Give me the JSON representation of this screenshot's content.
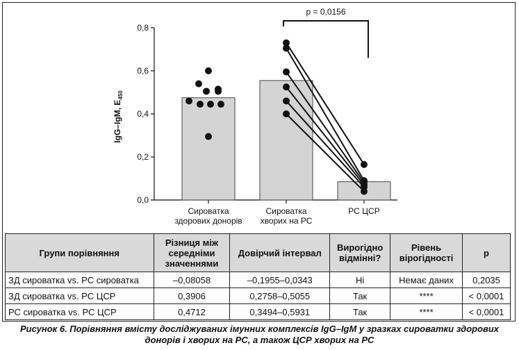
{
  "chart_data": {
    "type": "bar",
    "ylabel": "IgG–IgM, E",
    "ylabel_sub": "450",
    "ylim": [
      0,
      0.8
    ],
    "yticks": [
      "0,0",
      "0,2",
      "0,4",
      "0,6",
      "0,8"
    ],
    "ytick_values": [
      0,
      0.2,
      0.4,
      0.6,
      0.8
    ],
    "categories": [
      [
        "Сироватка",
        "здорових донорів"
      ],
      [
        "Сироватка",
        "хворих на РС"
      ],
      [
        "РС ЦСР"
      ]
    ],
    "values": [
      0.475,
      0.555,
      0.085
    ],
    "points": [
      [
        0.6,
        0.54,
        0.515,
        0.505,
        0.505,
        0.46,
        0.445,
        0.445,
        0.445,
        0.295
      ],
      [
        0.73,
        0.705,
        0.595,
        0.525,
        0.46,
        0.4
      ],
      [
        0.165,
        0.09,
        0.08,
        0.07,
        0.06,
        0.04
      ]
    ],
    "paired": [
      [
        1,
        2
      ]
    ],
    "significance": {
      "label": "p = 0,0156",
      "from": 1,
      "to": 2
    }
  },
  "table": {
    "headers": [
      "Групи порівняння",
      "Різниця між середніми значеннями",
      "Довірчий інтервал",
      "Вирогідно відмінні?",
      "Рівень вірогідності",
      "p"
    ],
    "rows": [
      [
        "ЗД сироватка vs. РС сироватка",
        "–0,08058",
        "–0,1955–0,0343",
        "Ні",
        "Немає даних",
        "0,2035"
      ],
      [
        "ЗД сироватка vs. РС ЦСР",
        "0,3906",
        "0,2758–0,5055",
        "Так",
        "****",
        "< 0,0001"
      ],
      [
        "РС сироватка vs. РС ЦСР",
        "0,4712",
        "0,3494–0,5931",
        "Так",
        "****",
        "< 0,0001"
      ]
    ]
  },
  "caption": {
    "line1": "Рисунок 6. Порівняння вмісту досліджуваних імунних комплексів IgG–IgM у зразках сироватки здорових",
    "line2": "донорів і хворих на РС, а також ЦСР хворих на РС"
  }
}
